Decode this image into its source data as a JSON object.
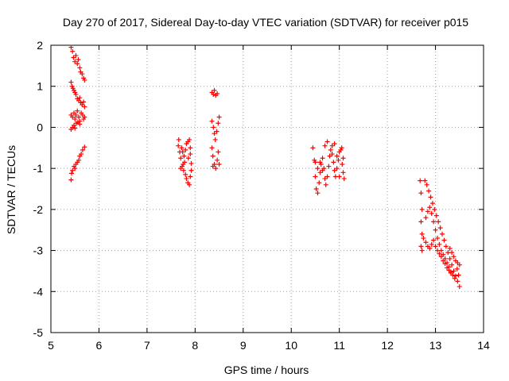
{
  "chart_data": {
    "type": "scatter",
    "title": "Day 270 of 2017, Sidereal Day-to-day VTEC variation (SDTVAR) for receiver p015",
    "xlabel": "GPS time / hours",
    "ylabel": "SDTVAR / TECUs",
    "xlim": [
      5,
      14
    ],
    "ylim": [
      -5,
      2
    ],
    "x_ticks": [
      5,
      6,
      7,
      8,
      9,
      10,
      11,
      12,
      13,
      14
    ],
    "y_ticks": [
      -5,
      -4,
      -3,
      -2,
      -1,
      0,
      1,
      2
    ],
    "grid": true,
    "marker": "+",
    "series": [
      {
        "name": "SDTVAR",
        "color": "#ff0000",
        "points": [
          [
            5.42,
            1.95
          ],
          [
            5.45,
            1.85
          ],
          [
            5.47,
            1.7
          ],
          [
            5.5,
            1.6
          ],
          [
            5.52,
            1.75
          ],
          [
            5.55,
            1.55
          ],
          [
            5.57,
            1.65
          ],
          [
            5.6,
            1.45
          ],
          [
            5.62,
            1.35
          ],
          [
            5.65,
            1.3
          ],
          [
            5.68,
            1.2
          ],
          [
            5.7,
            1.15
          ],
          [
            5.42,
            1.1
          ],
          [
            5.44,
            1.0
          ],
          [
            5.46,
            0.95
          ],
          [
            5.48,
            0.9
          ],
          [
            5.5,
            0.85
          ],
          [
            5.52,
            0.8
          ],
          [
            5.55,
            0.7
          ],
          [
            5.58,
            0.65
          ],
          [
            5.6,
            0.72
          ],
          [
            5.62,
            0.6
          ],
          [
            5.65,
            0.55
          ],
          [
            5.68,
            0.62
          ],
          [
            5.7,
            0.5
          ],
          [
            5.42,
            0.3
          ],
          [
            5.45,
            0.25
          ],
          [
            5.48,
            0.35
          ],
          [
            5.5,
            0.2
          ],
          [
            5.52,
            0.3
          ],
          [
            5.55,
            0.4
          ],
          [
            5.58,
            0.25
          ],
          [
            5.6,
            0.15
          ],
          [
            5.63,
            0.35
          ],
          [
            5.66,
            0.3
          ],
          [
            5.68,
            0.2
          ],
          [
            5.7,
            0.25
          ],
          [
            5.42,
            -0.05
          ],
          [
            5.45,
            0.0
          ],
          [
            5.48,
            0.05
          ],
          [
            5.5,
            -0.02
          ],
          [
            5.53,
            0.1
          ],
          [
            5.56,
            0.12
          ],
          [
            5.6,
            0.08
          ],
          [
            5.45,
            -1.05
          ],
          [
            5.48,
            -0.95
          ],
          [
            5.5,
            -1.0
          ],
          [
            5.52,
            -0.9
          ],
          [
            5.55,
            -0.85
          ],
          [
            5.58,
            -0.8
          ],
          [
            5.6,
            -0.7
          ],
          [
            5.63,
            -0.65
          ],
          [
            5.66,
            -0.55
          ],
          [
            5.7,
            -0.48
          ],
          [
            5.43,
            -1.12
          ],
          [
            5.42,
            -1.28
          ],
          [
            7.65,
            -0.45
          ],
          [
            7.68,
            -0.6
          ],
          [
            7.7,
            -0.75
          ],
          [
            7.72,
            -0.5
          ],
          [
            7.75,
            -0.9
          ],
          [
            7.77,
            -0.7
          ],
          [
            7.8,
            -0.55
          ],
          [
            7.82,
            -0.4
          ],
          [
            7.85,
            -0.35
          ],
          [
            7.88,
            -0.3
          ],
          [
            7.9,
            -0.5
          ],
          [
            7.7,
            -1.0
          ],
          [
            7.73,
            -0.95
          ],
          [
            7.76,
            -1.05
          ],
          [
            7.78,
            -0.85
          ],
          [
            7.8,
            -1.15
          ],
          [
            7.82,
            -1.25
          ],
          [
            7.85,
            -1.35
          ],
          [
            7.88,
            -1.4
          ],
          [
            7.9,
            -1.2
          ],
          [
            7.92,
            -1.05
          ],
          [
            7.66,
            -0.3
          ],
          [
            7.74,
            -0.6
          ],
          [
            7.86,
            -0.75
          ],
          [
            7.9,
            -0.65
          ],
          [
            7.92,
            -0.88
          ],
          [
            8.35,
            0.85
          ],
          [
            8.38,
            0.8
          ],
          [
            8.4,
            0.9
          ],
          [
            8.43,
            0.78
          ],
          [
            8.46,
            0.82
          ],
          [
            8.35,
            0.15
          ],
          [
            8.38,
            0.0
          ],
          [
            8.4,
            -0.15
          ],
          [
            8.42,
            -0.3
          ],
          [
            8.45,
            -0.1
          ],
          [
            8.48,
            0.1
          ],
          [
            8.5,
            0.25
          ],
          [
            8.35,
            -0.5
          ],
          [
            8.37,
            -0.7
          ],
          [
            8.4,
            -0.9
          ],
          [
            8.43,
            -1.0
          ],
          [
            8.46,
            -0.8
          ],
          [
            8.48,
            -0.6
          ],
          [
            8.5,
            -0.9
          ],
          [
            8.37,
            -0.95
          ],
          [
            10.45,
            -0.5
          ],
          [
            10.48,
            -0.8
          ],
          [
            10.5,
            -1.2
          ],
          [
            10.52,
            -1.5
          ],
          [
            10.55,
            -1.6
          ],
          [
            10.58,
            -1.35
          ],
          [
            10.6,
            -1.1
          ],
          [
            10.62,
            -0.9
          ],
          [
            10.65,
            -0.75
          ],
          [
            10.68,
            -1.0
          ],
          [
            10.7,
            -1.25
          ],
          [
            10.72,
            -1.4
          ],
          [
            10.75,
            -1.2
          ],
          [
            10.78,
            -0.95
          ],
          [
            10.8,
            -0.7
          ],
          [
            10.82,
            -0.55
          ],
          [
            10.85,
            -0.65
          ],
          [
            10.88,
            -0.85
          ],
          [
            10.9,
            -1.05
          ],
          [
            10.92,
            -1.2
          ],
          [
            10.95,
            -1.0
          ],
          [
            10.98,
            -0.8
          ],
          [
            11.0,
            -0.6
          ],
          [
            11.03,
            -0.55
          ],
          [
            11.06,
            -0.9
          ],
          [
            11.08,
            -1.1
          ],
          [
            11.1,
            -1.25
          ],
          [
            10.55,
            -1.0
          ],
          [
            10.6,
            -0.85
          ],
          [
            10.7,
            -0.45
          ],
          [
            10.75,
            -0.35
          ],
          [
            10.85,
            -0.45
          ],
          [
            10.95,
            -0.7
          ],
          [
            11.05,
            -0.5
          ],
          [
            11.08,
            -0.75
          ],
          [
            10.5,
            -0.85
          ],
          [
            10.65,
            -1.05
          ],
          [
            10.9,
            -0.4
          ],
          [
            11.0,
            -1.2
          ],
          [
            12.68,
            -1.3
          ],
          [
            12.7,
            -1.6
          ],
          [
            12.72,
            -2.0
          ],
          [
            12.7,
            -2.3
          ],
          [
            12.72,
            -2.6
          ],
          [
            12.7,
            -2.9
          ],
          [
            12.72,
            -3.0
          ],
          [
            12.78,
            -1.3
          ],
          [
            12.82,
            -1.4
          ],
          [
            12.86,
            -1.55
          ],
          [
            12.9,
            -1.7
          ],
          [
            12.94,
            -1.85
          ],
          [
            12.98,
            -2.0
          ],
          [
            13.02,
            -2.15
          ],
          [
            13.06,
            -2.3
          ],
          [
            13.1,
            -2.45
          ],
          [
            13.14,
            -2.6
          ],
          [
            13.18,
            -2.75
          ],
          [
            13.22,
            -2.9
          ],
          [
            13.26,
            -3.05
          ],
          [
            13.3,
            -3.2
          ],
          [
            13.34,
            -3.35
          ],
          [
            13.38,
            -3.5
          ],
          [
            13.42,
            -3.62
          ],
          [
            13.46,
            -3.75
          ],
          [
            13.5,
            -3.88
          ],
          [
            12.8,
            -2.2
          ],
          [
            12.84,
            -2.05
          ],
          [
            12.88,
            -1.95
          ],
          [
            12.92,
            -2.1
          ],
          [
            12.96,
            -2.3
          ],
          [
            13.0,
            -2.5
          ],
          [
            13.04,
            -2.7
          ],
          [
            13.08,
            -2.85
          ],
          [
            13.12,
            -3.0
          ],
          [
            13.16,
            -3.1
          ],
          [
            13.2,
            -3.2
          ],
          [
            13.24,
            -3.3
          ],
          [
            13.28,
            -3.4
          ],
          [
            13.32,
            -3.52
          ],
          [
            13.36,
            -3.6
          ],
          [
            13.4,
            -3.68
          ],
          [
            12.75,
            -2.7
          ],
          [
            12.8,
            -2.8
          ],
          [
            12.84,
            -2.9
          ],
          [
            12.88,
            -2.95
          ],
          [
            12.92,
            -2.85
          ],
          [
            12.96,
            -2.75
          ],
          [
            13.0,
            -2.9
          ],
          [
            13.04,
            -3.0
          ],
          [
            13.08,
            -3.08
          ],
          [
            13.12,
            -3.15
          ],
          [
            13.16,
            -3.25
          ],
          [
            13.2,
            -3.32
          ],
          [
            13.24,
            -3.42
          ],
          [
            13.28,
            -3.48
          ],
          [
            13.32,
            -3.55
          ],
          [
            13.3,
            -2.95
          ],
          [
            13.34,
            -3.05
          ],
          [
            13.38,
            -3.15
          ],
          [
            13.42,
            -3.25
          ],
          [
            13.46,
            -3.3
          ],
          [
            13.5,
            -3.35
          ],
          [
            13.45,
            -3.45
          ],
          [
            13.48,
            -3.6
          ]
        ]
      }
    ]
  }
}
